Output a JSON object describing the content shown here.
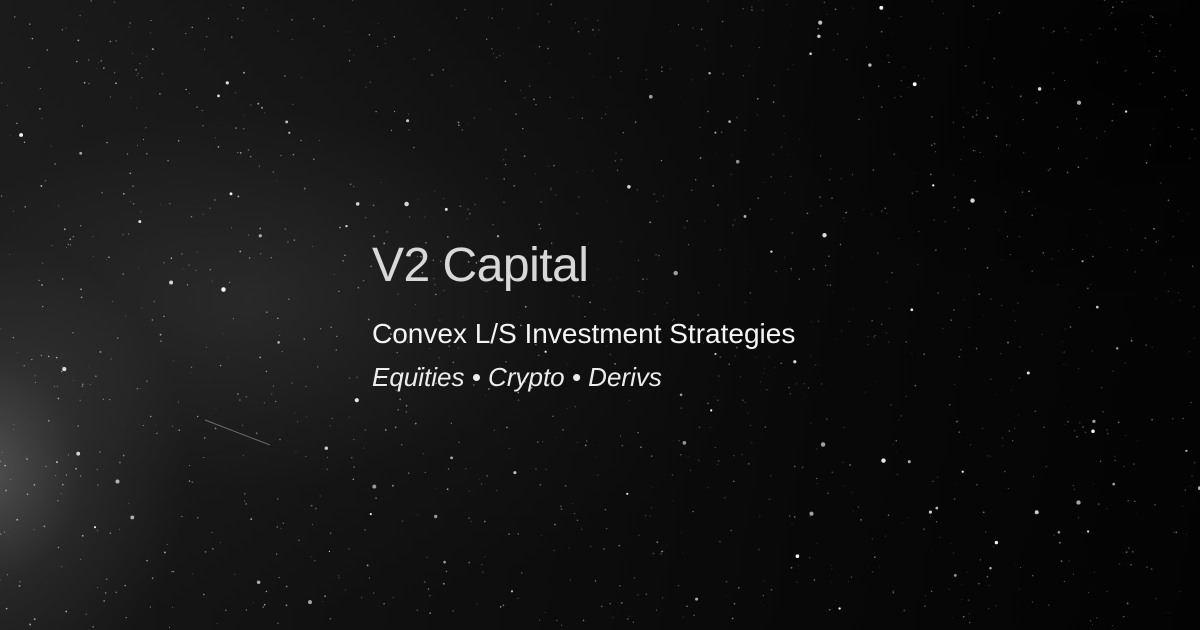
{
  "brand": {
    "name": "V2 Capital"
  },
  "tagline": "Convex L/S Investment Strategies",
  "categories": "Equities • Crypto • Derivs",
  "background": {
    "description_colors": {
      "base": "#050505",
      "star": "#ffffff"
    }
  }
}
